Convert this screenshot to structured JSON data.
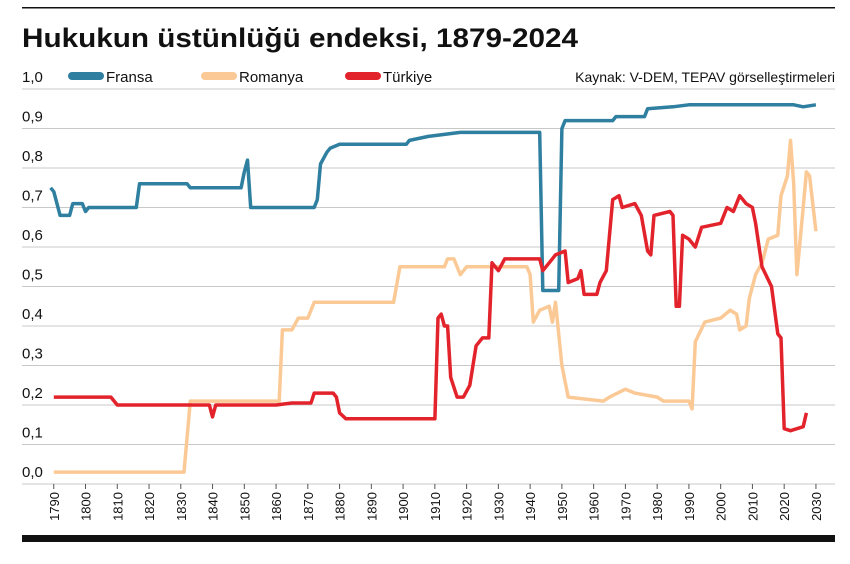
{
  "chart_data": {
    "type": "line",
    "title": "Hukukun üstünlüğü endeksi, 1879-2024",
    "source": "Kaynak: V-DEM, TEPAV görselleştirmeleri",
    "legend": "top",
    "grid": true,
    "xlim": [
      1780,
      2036
    ],
    "ylim": [
      0,
      1
    ],
    "xticks": [
      1790,
      1800,
      1810,
      1820,
      1830,
      1840,
      1850,
      1860,
      1870,
      1880,
      1890,
      1900,
      1910,
      1920,
      1930,
      1940,
      1950,
      1960,
      1970,
      1980,
      1990,
      2000,
      2010,
      2020,
      2030
    ],
    "yticks": [
      {
        "value": 0,
        "label": "0,0"
      },
      {
        "value": 0.1,
        "label": "0,1"
      },
      {
        "value": 0.2,
        "label": "0,2"
      },
      {
        "value": 0.3,
        "label": "0,3"
      },
      {
        "value": 0.4,
        "label": "0,4"
      },
      {
        "value": 0.5,
        "label": "0,5"
      },
      {
        "value": 0.6,
        "label": "0,6"
      },
      {
        "value": 0.7,
        "label": "0,7"
      },
      {
        "value": 0.8,
        "label": "0,8"
      },
      {
        "value": 0.9,
        "label": "0,9"
      },
      {
        "value": 1,
        "label": "1,0"
      }
    ],
    "series": [
      {
        "name": "Fransa",
        "color": "#2f7fa0",
        "x": [
          1789,
          1790,
          1792,
          1795,
          1796,
          1799,
          1800,
          1801,
          1816,
          1817,
          1832,
          1833,
          1849,
          1850,
          1851,
          1852,
          1872,
          1873,
          1874,
          1876,
          1877,
          1880,
          1901,
          1902,
          1908,
          1918,
          1943,
          1944,
          1949,
          1950,
          1951,
          1966,
          1967,
          1976,
          1977,
          1985,
          1990,
          2023,
          2026,
          2030
        ],
        "values": [
          0.75,
          0.74,
          0.68,
          0.68,
          0.71,
          0.71,
          0.69,
          0.7,
          0.7,
          0.76,
          0.76,
          0.75,
          0.75,
          0.79,
          0.82,
          0.7,
          0.7,
          0.72,
          0.81,
          0.84,
          0.85,
          0.86,
          0.86,
          0.87,
          0.88,
          0.89,
          0.89,
          0.49,
          0.49,
          0.9,
          0.92,
          0.92,
          0.93,
          0.93,
          0.95,
          0.955,
          0.96,
          0.96,
          0.955,
          0.96
        ]
      },
      {
        "name": "Romanya",
        "color": "#fbc995",
        "x": [
          1790,
          1831,
          1833,
          1861,
          1862,
          1865,
          1867,
          1870,
          1872,
          1897,
          1899,
          1913,
          1914,
          1916,
          1918,
          1920,
          1939,
          1940,
          1941,
          1943,
          1946,
          1947,
          1948,
          1950,
          1952,
          1963,
          1965,
          1970,
          1973,
          1980,
          1982,
          1990,
          1991,
          1992,
          1995,
          2000,
          2003,
          2005,
          2006,
          2008,
          2009,
          2011,
          2013,
          2015,
          2018,
          2019,
          2021,
          2022,
          2023,
          2024,
          2026,
          2027,
          2028,
          2030
        ],
        "values": [
          0.03,
          0.03,
          0.21,
          0.21,
          0.39,
          0.39,
          0.42,
          0.42,
          0.46,
          0.46,
          0.55,
          0.55,
          0.57,
          0.57,
          0.53,
          0.55,
          0.55,
          0.53,
          0.41,
          0.44,
          0.45,
          0.41,
          0.46,
          0.3,
          0.22,
          0.21,
          0.22,
          0.24,
          0.23,
          0.22,
          0.21,
          0.21,
          0.19,
          0.36,
          0.41,
          0.42,
          0.44,
          0.43,
          0.39,
          0.4,
          0.47,
          0.53,
          0.56,
          0.62,
          0.63,
          0.73,
          0.78,
          0.87,
          0.76,
          0.53,
          0.7,
          0.79,
          0.78,
          0.64
        ]
      },
      {
        "name": "Türkiye",
        "color": "#e3232b",
        "x": [
          1790,
          1808,
          1810,
          1839,
          1840,
          1841,
          1860,
          1865,
          1871,
          1872,
          1878,
          1879,
          1880,
          1882,
          1910,
          1911,
          1912,
          1913,
          1914,
          1915,
          1917,
          1919,
          1921,
          1923,
          1925,
          1927,
          1928,
          1930,
          1932,
          1943,
          1944,
          1946,
          1948,
          1951,
          1952,
          1955,
          1956,
          1957,
          1961,
          1962,
          1964,
          1966,
          1968,
          1969,
          1973,
          1975,
          1977,
          1978,
          1979,
          1984,
          1985,
          1986,
          1987,
          1988,
          1990,
          1992,
          1994,
          2000,
          2002,
          2004,
          2006,
          2008,
          2010,
          2011,
          2013,
          2016,
          2018,
          2019,
          2020,
          2022,
          2024,
          2026,
          2027
        ],
        "values": [
          0.22,
          0.22,
          0.2,
          0.2,
          0.17,
          0.2,
          0.2,
          0.205,
          0.205,
          0.23,
          0.23,
          0.22,
          0.18,
          0.165,
          0.165,
          0.42,
          0.43,
          0.4,
          0.4,
          0.27,
          0.22,
          0.22,
          0.25,
          0.35,
          0.37,
          0.37,
          0.56,
          0.54,
          0.57,
          0.57,
          0.54,
          0.56,
          0.58,
          0.59,
          0.51,
          0.52,
          0.54,
          0.48,
          0.48,
          0.51,
          0.54,
          0.72,
          0.73,
          0.7,
          0.71,
          0.68,
          0.59,
          0.58,
          0.68,
          0.69,
          0.68,
          0.45,
          0.45,
          0.63,
          0.62,
          0.6,
          0.65,
          0.66,
          0.7,
          0.69,
          0.73,
          0.71,
          0.7,
          0.66,
          0.55,
          0.5,
          0.38,
          0.37,
          0.14,
          0.135,
          0.14,
          0.145,
          0.18
        ]
      }
    ]
  }
}
